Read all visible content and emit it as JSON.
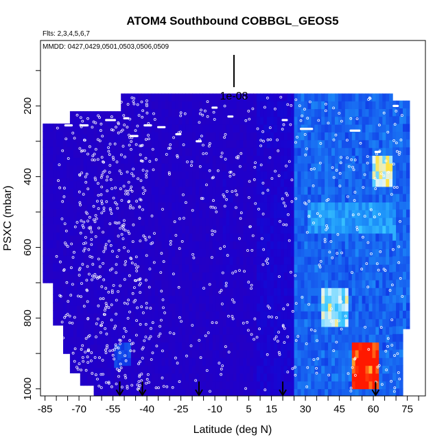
{
  "chart_data": {
    "type": "heatmap",
    "title": "ATOM4 Southbound COBBGL_GEOS5",
    "subtitle_flights": "Flts: 2,3,4,5,6,7",
    "subtitle_dates": "MMDD: 0427,0429,0501,0503,0506,0509",
    "xlabel": "Latitude (deg N)",
    "ylabel": "PSXC (mbar)",
    "xlim": [
      -87,
      83
    ],
    "ylim": [
      1020,
      15
    ],
    "y_reversed": true,
    "x_ticks": [
      -85,
      -70,
      -55,
      -40,
      -25,
      -10,
      5,
      15,
      30,
      45,
      60,
      75
    ],
    "x_tick_labels": [
      "-85",
      "-70",
      "-55",
      "-40",
      "-25",
      "-10",
      "5",
      "15",
      "30",
      "45",
      "60",
      "75"
    ],
    "y_ticks": [
      200,
      400,
      600,
      800,
      1000
    ],
    "y_tick_labels": [
      "200",
      "400",
      "600",
      "800",
      "1000"
    ],
    "scale_bar_label": "1e-08",
    "arrow_latitudes": [
      -52,
      -42,
      -17,
      20,
      61
    ],
    "colors": {
      "low": "#2a00b8",
      "mid": "#0a14d8",
      "high_blue": "#1a7cf0",
      "cyan": "#30c0ff",
      "peak": "#ff2000",
      "flight_marker": "#ffffff"
    },
    "grid": false,
    "legend": "none"
  }
}
